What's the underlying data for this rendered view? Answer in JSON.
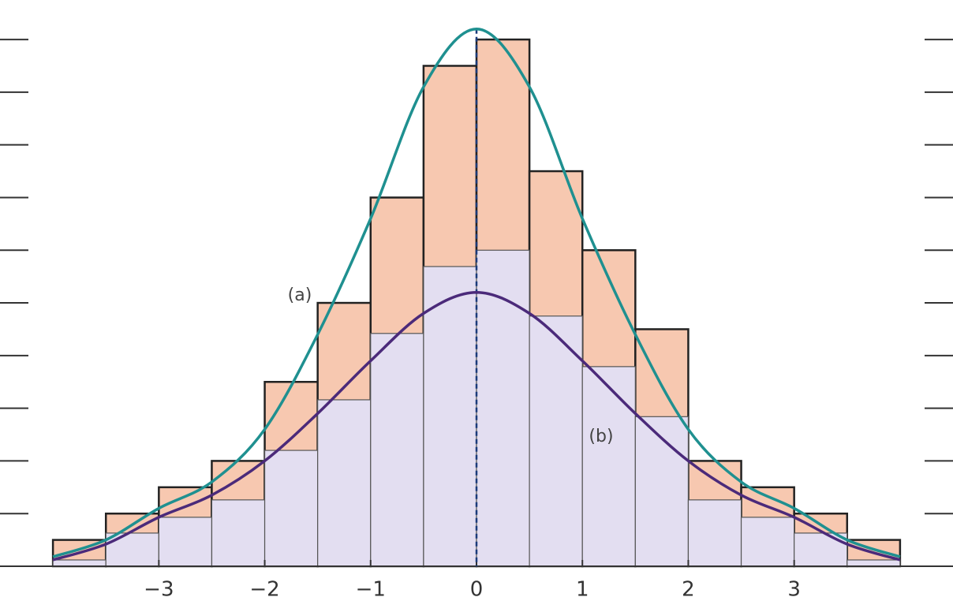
{
  "chart_data": {
    "type": "histogram",
    "bins": [
      -4,
      -3.5,
      -3,
      -2.5,
      -2,
      -1.5,
      -1,
      -0.5,
      0,
      0.5,
      1,
      1.5,
      2,
      2.5,
      3,
      3.5,
      4
    ],
    "series": [
      {
        "name": "(a)",
        "color": "#f7c8b0",
        "line_color": "#1f9090",
        "values": [
          0.5,
          1,
          1.5,
          2,
          3.5,
          5,
          7,
          9.5,
          10,
          7.5,
          6,
          4.5,
          2,
          1.5,
          1,
          0.5
        ],
        "curve": [
          0.18,
          0.5,
          1.1,
          1.6,
          2.6,
          4.4,
          6.6,
          9.1,
          10.2,
          9.1,
          6.6,
          4.4,
          2.6,
          1.6,
          1.1,
          0.5,
          0.18
        ]
      },
      {
        "name": "(b)",
        "color": "#e3def1",
        "line_color": "#4b2a7a",
        "values": [
          0.12,
          0.63,
          0.93,
          1.26,
          2.2,
          3.16,
          4.42,
          5.69,
          6,
          4.75,
          3.79,
          2.84,
          1.26,
          0.93,
          0.63,
          0.12
        ],
        "curve": [
          0.12,
          0.42,
          0.93,
          1.35,
          2,
          2.9,
          3.9,
          4.8,
          5.2,
          4.8,
          3.9,
          2.9,
          2,
          1.35,
          0.93,
          0.42,
          0.12
        ]
      }
    ],
    "curve_x": [
      -4,
      -3.5,
      -3,
      -2.5,
      -2,
      -1.5,
      -1,
      -0.5,
      0,
      0.5,
      1,
      1.5,
      2,
      2.5,
      3,
      3.5,
      4
    ],
    "vline_x": 0,
    "xlim": [
      -4.5,
      4.5
    ],
    "xticks": [
      {
        "value": -3,
        "label": "−3"
      },
      {
        "value": -2,
        "label": "−2"
      },
      {
        "value": -1,
        "label": "−1"
      },
      0,
      1,
      2,
      3
    ],
    "ylim": [
      0,
      10.75
    ],
    "yticks": [
      0,
      1,
      2,
      3,
      4,
      5,
      6,
      7,
      8,
      9,
      10
    ]
  }
}
